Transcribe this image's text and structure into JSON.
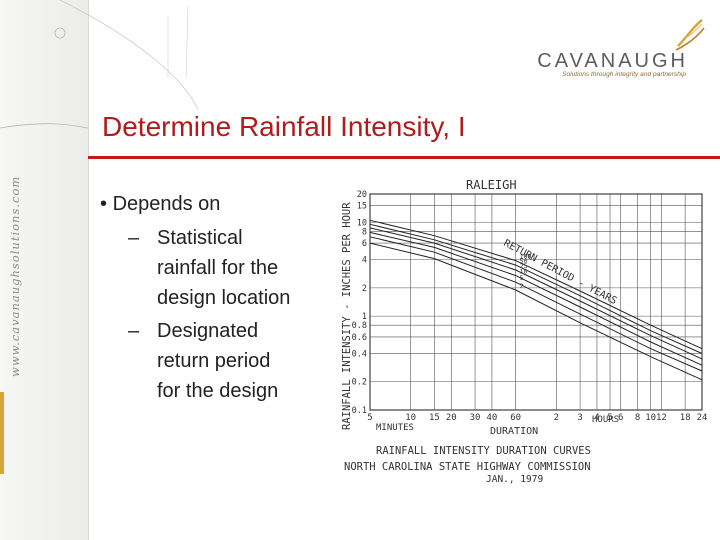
{
  "brand": {
    "name": "CAVANAUGH",
    "tagline": "Solutions through integrity and partnership",
    "url": "www.cavanaughsolutions.com",
    "colors": {
      "title_red": "#b01c1c",
      "rule_red": "#c41919",
      "gold": "#d6a63a",
      "gray": "#5c5c5c"
    }
  },
  "slide": {
    "title": "Determine Rainfall Intensity, I",
    "bullet": "Depends on",
    "sub_items": [
      {
        "dash": "–",
        "line1": "Statistical",
        "line2": "rainfall for the",
        "line3": "design location"
      },
      {
        "dash": "–",
        "line1": "Designated",
        "line2": "return period",
        "line3": "for the design"
      }
    ]
  },
  "chart_data": {
    "type": "line",
    "title": "RALEIGH",
    "ylabel": "RAINFALL INTENSITY - INCHES PER HOUR",
    "xlabel": "DURATION",
    "x_unit_minutes": "MINUTES",
    "x_unit_hours": "HOURS",
    "y_ticks": [
      "20",
      "15",
      "10",
      "8",
      "6",
      "4",
      "2",
      "1",
      "0.8",
      "0.6",
      "0.4",
      "0.2",
      "0.1"
    ],
    "x_ticks_minutes": [
      "5",
      "10",
      "15",
      "20",
      "30",
      "40",
      "60"
    ],
    "x_ticks_hours": [
      "2",
      "3",
      "4",
      "5",
      "6",
      "8",
      "10",
      "12",
      "18",
      "24"
    ],
    "ylim": [
      0.1,
      20
    ],
    "series_label": "RETURN PERIOD - YEARS",
    "series": [
      {
        "name": "100",
        "points": [
          [
            5,
            10.5
          ],
          [
            15,
            7.2
          ],
          [
            60,
            3.9
          ],
          [
            180,
            1.85
          ],
          [
            600,
            0.8
          ],
          [
            1440,
            0.45
          ]
        ]
      },
      {
        "name": "50",
        "points": [
          [
            5,
            9.5
          ],
          [
            15,
            6.5
          ],
          [
            60,
            3.5
          ],
          [
            180,
            1.65
          ],
          [
            600,
            0.7
          ],
          [
            1440,
            0.4
          ]
        ]
      },
      {
        "name": "25",
        "points": [
          [
            5,
            8.7
          ],
          [
            15,
            6.0
          ],
          [
            60,
            3.1
          ],
          [
            180,
            1.45
          ],
          [
            600,
            0.62
          ],
          [
            1440,
            0.35
          ]
        ]
      },
      {
        "name": "10",
        "points": [
          [
            5,
            7.8
          ],
          [
            15,
            5.4
          ],
          [
            60,
            2.7
          ],
          [
            180,
            1.25
          ],
          [
            600,
            0.53
          ],
          [
            1440,
            0.3
          ]
        ]
      },
      {
        "name": "5",
        "points": [
          [
            5,
            7.0
          ],
          [
            15,
            4.8
          ],
          [
            60,
            2.3
          ],
          [
            180,
            1.05
          ],
          [
            600,
            0.45
          ],
          [
            1440,
            0.26
          ]
        ]
      },
      {
        "name": "2",
        "points": [
          [
            5,
            6.0
          ],
          [
            15,
            4.1
          ],
          [
            60,
            1.9
          ],
          [
            180,
            0.85
          ],
          [
            600,
            0.37
          ],
          [
            1440,
            0.21
          ]
        ]
      }
    ],
    "caption_line1": "RAINFALL INTENSITY DURATION CURVES",
    "caption_line2": "NORTH CAROLINA STATE HIGHWAY COMMISSION",
    "caption_line3": "JAN., 1979",
    "grid": true
  }
}
